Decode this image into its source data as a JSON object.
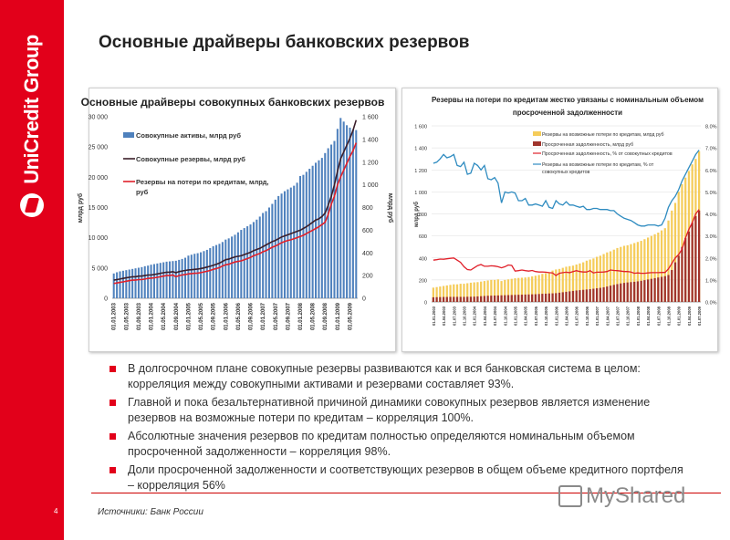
{
  "brand": {
    "logo_text": "UniCredit Group",
    "accent": "#e2001a"
  },
  "slide": {
    "title": "Основные драйверы банковских резервов",
    "page_number": "4",
    "source": "Источники: Банк России",
    "watermark": "MyShared"
  },
  "bullets": [
    "В долгосрочном плане совокупные резервы развиваются как и вся банковская система в целом: корреляция между совокупными активами и резервами составляет 93%.",
    "Главной и пока безальтернативной причиной динамики совокупных резервов является изменение резервов на возможные потери по кредитам – корреляция 100%.",
    "Абсолютные значения резервов по кредитам полностью определяются номинальным объемом просроченной задолженности – корреляция 98%.",
    "Доли просроченной задолженности и соответствующих резервов в общем объеме кредитного портфеля – корреляция 56%"
  ],
  "chart_data": [
    {
      "type": "bar+line",
      "title": "Основные драйверы совокупных банковских резервов",
      "ylabel": "млрд руб",
      "y2label": "млрд руб",
      "ylim": [
        0,
        30000
      ],
      "y2lim": [
        0,
        1600
      ],
      "yticks": [
        "0",
        "5 000",
        "10 000",
        "15 000",
        "20 000",
        "25 000",
        "30 000"
      ],
      "y2ticks": [
        "0",
        "200",
        "400",
        "600",
        "800",
        "1 000",
        "1 200",
        "1 400",
        "1 600"
      ],
      "x_tick_labels": [
        "01.01.2003",
        "01.05.2003",
        "01.09.2003",
        "01.01.2004",
        "01.05.2004",
        "01.09.2004",
        "01.01.2005",
        "01.05.2005",
        "01.09.2005",
        "01.01.2006",
        "01.05.2006",
        "01.09.2006",
        "01.01.2007",
        "01.05.2007",
        "01.09.2007",
        "01.01.2008",
        "01.05.2008",
        "01.09.2008",
        "01.01.2009",
        "01.05.2009"
      ],
      "x_tick_every_months": 4,
      "series": [
        {
          "name": "Совокупные активы, млрд руб",
          "kind": "bar",
          "axis": "left",
          "color": "#4f81bd",
          "values": [
            4100,
            4300,
            4450,
            4550,
            4650,
            4750,
            4850,
            4950,
            5050,
            5150,
            5300,
            5400,
            5550,
            5650,
            5750,
            5850,
            5950,
            6050,
            6100,
            6150,
            6200,
            6350,
            6500,
            6700,
            7050,
            7200,
            7350,
            7450,
            7600,
            7800,
            8000,
            8300,
            8600,
            8800,
            9000,
            9300,
            9700,
            9900,
            10200,
            10500,
            10900,
            11300,
            11600,
            11900,
            12200,
            12600,
            13000,
            13500,
            14100,
            14400,
            15000,
            15600,
            16300,
            16900,
            17300,
            17700,
            18000,
            18300,
            18600,
            19100,
            20200,
            20400,
            20900,
            21400,
            21900,
            22400,
            22800,
            23200,
            24000,
            24800,
            25400,
            26000,
            28000,
            29800,
            29200,
            28600,
            28200,
            27900,
            27800
          ]
        },
        {
          "name": "Совокупные резервы, млрд руб",
          "kind": "line",
          "axis": "right",
          "color": "#3b1e2a",
          "values": [
            160,
            165,
            170,
            175,
            180,
            185,
            190,
            190,
            195,
            195,
            200,
            205,
            205,
            210,
            215,
            220,
            225,
            230,
            230,
            235,
            225,
            235,
            240,
            245,
            250,
            252,
            255,
            258,
            262,
            268,
            275,
            282,
            290,
            300,
            310,
            325,
            340,
            345,
            355,
            365,
            370,
            375,
            385,
            395,
            405,
            420,
            430,
            440,
            455,
            470,
            485,
            500,
            510,
            525,
            540,
            550,
            560,
            570,
            580,
            590,
            600,
            615,
            630,
            650,
            670,
            690,
            700,
            720,
            750,
            820,
            900,
            1000,
            1120,
            1230,
            1290,
            1350,
            1410,
            1480,
            1570
          ]
        },
        {
          "name": "Резервы на потери по кредитам, млрд, руб",
          "kind": "line",
          "axis": "right",
          "color": "#e0202a",
          "values": [
            130,
            135,
            140,
            145,
            150,
            155,
            160,
            160,
            165,
            165,
            170,
            175,
            178,
            180,
            185,
            190,
            195,
            200,
            200,
            205,
            190,
            200,
            205,
            210,
            215,
            218,
            220,
            222,
            226,
            232,
            238,
            245,
            255,
            262,
            270,
            285,
            295,
            300,
            310,
            320,
            325,
            330,
            340,
            350,
            360,
            375,
            385,
            395,
            410,
            420,
            435,
            450,
            460,
            475,
            490,
            500,
            510,
            515,
            525,
            535,
            545,
            555,
            570,
            585,
            600,
            615,
            630,
            650,
            670,
            740,
            830,
            900,
            1000,
            1070,
            1130,
            1190,
            1250,
            1300,
            1370
          ]
        }
      ]
    },
    {
      "type": "bar+line",
      "title": [
        "Резервы на потери по кредитам жестко увязаны с номинальным объемом",
        "просроченной задолженности"
      ],
      "ylabel": "млрд руб",
      "ylim": [
        0,
        1600
      ],
      "y2lim": [
        0,
        8
      ],
      "yticks": [
        "0",
        "200",
        "400",
        "600",
        "800",
        "1 000",
        "1 200",
        "1 400",
        "1 600"
      ],
      "y2ticks": [
        "0.0%",
        "1.0%",
        "2.0%",
        "3.0%",
        "4.0%",
        "5.0%",
        "6.0%",
        "7.0%",
        "8.0%"
      ],
      "x_tick_labels": [
        "01.01.2003",
        "01.04.2003",
        "01.07.2003",
        "01.10.2003",
        "01.01.2004",
        "01.04.2004",
        "01.07.2004",
        "01.10.2004",
        "01.01.2005",
        "01.04.2005",
        "01.07.2005",
        "01.10.2005",
        "01.01.2006",
        "01.04.2006",
        "01.07.2006",
        "01.10.2006",
        "01.01.2007",
        "01.04.2007",
        "01.07.2007",
        "01.10.2007",
        "01.01.2008",
        "01.04.2008",
        "01.07.2008",
        "01.10.2008",
        "01.01.2009",
        "01.04.2009",
        "01.07.2009"
      ],
      "x_tick_every_months": 3,
      "series": [
        {
          "name": "Резервы на возможные потери по кредитам, млрд руб",
          "kind": "bar",
          "axis": "left",
          "color": "#f5cc5a",
          "values": [
            130,
            135,
            140,
            145,
            150,
            155,
            160,
            160,
            165,
            165,
            170,
            175,
            178,
            180,
            185,
            190,
            195,
            200,
            200,
            205,
            190,
            200,
            205,
            210,
            215,
            218,
            220,
            222,
            226,
            232,
            238,
            245,
            255,
            262,
            270,
            285,
            295,
            300,
            310,
            320,
            325,
            330,
            340,
            350,
            360,
            375,
            385,
            395,
            410,
            420,
            435,
            450,
            460,
            475,
            490,
            500,
            510,
            515,
            525,
            535,
            545,
            555,
            570,
            585,
            600,
            615,
            630,
            650,
            670,
            740,
            830,
            900,
            1000,
            1070,
            1130,
            1190,
            1250,
            1300,
            1370
          ]
        },
        {
          "name": "Просроченная задолженность, млрд руб",
          "kind": "bar",
          "axis": "left",
          "color": "#a0342c",
          "values": [
            42,
            43,
            44,
            45,
            45,
            46,
            46,
            46,
            46,
            46,
            47,
            47,
            48,
            50,
            52,
            54,
            56,
            57,
            58,
            59,
            60,
            61,
            62,
            63,
            64,
            65,
            66,
            67,
            68,
            69,
            70,
            72,
            74,
            75,
            77,
            78,
            80,
            84,
            88,
            92,
            96,
            100,
            104,
            107,
            110,
            113,
            116,
            120,
            124,
            128,
            133,
            140,
            148,
            155,
            162,
            168,
            173,
            177,
            180,
            183,
            187,
            192,
            198,
            204,
            210,
            216,
            222,
            228,
            234,
            245,
            290,
            360,
            420,
            500,
            580,
            640,
            720,
            780,
            830
          ]
        },
        {
          "name": "Просроченная задолженность, % от совокупных кредитов",
          "kind": "line",
          "axis": "right",
          "color": "#e0202a",
          "values": [
            1.9,
            1.92,
            1.95,
            1.94,
            1.96,
            1.98,
            2.0,
            1.9,
            1.8,
            1.6,
            1.47,
            1.45,
            1.55,
            1.65,
            1.7,
            1.62,
            1.62,
            1.64,
            1.63,
            1.6,
            1.55,
            1.6,
            1.68,
            1.66,
            1.4,
            1.42,
            1.45,
            1.42,
            1.4,
            1.43,
            1.38,
            1.36,
            1.36,
            1.35,
            1.33,
            1.32,
            1.2,
            1.3,
            1.33,
            1.35,
            1.33,
            1.38,
            1.42,
            1.38,
            1.36,
            1.36,
            1.42,
            1.32,
            1.35,
            1.35,
            1.36,
            1.38,
            1.45,
            1.43,
            1.42,
            1.4,
            1.38,
            1.38,
            1.36,
            1.3,
            1.32,
            1.3,
            1.3,
            1.32,
            1.33,
            1.33,
            1.33,
            1.34,
            1.34,
            1.5,
            1.75,
            2.0,
            2.15,
            2.4,
            2.9,
            3.3,
            3.6,
            4.0,
            4.2
          ]
        },
        {
          "name": "Резервы на возможные потери по кредитам, % от совокупных кредитов",
          "name_lines": [
            "Резервы на возможные потери по кредитам, % от",
            "совокупных кредитов"
          ],
          "kind": "line",
          "axis": "right",
          "color": "#2e8bc0",
          "values": [
            6.3,
            6.35,
            6.5,
            6.7,
            6.55,
            6.6,
            6.7,
            6.2,
            6.15,
            6.35,
            5.8,
            5.85,
            6.3,
            6.2,
            6.0,
            6.2,
            5.6,
            5.55,
            5.65,
            5.4,
            4.5,
            5.0,
            4.95,
            5.0,
            4.95,
            4.6,
            4.6,
            4.7,
            4.4,
            4.4,
            4.45,
            4.4,
            4.35,
            4.6,
            4.3,
            4.25,
            4.6,
            4.45,
            4.4,
            4.55,
            4.4,
            4.4,
            4.35,
            4.3,
            4.35,
            4.2,
            4.2,
            4.25,
            4.25,
            4.2,
            4.2,
            4.2,
            4.15,
            4.15,
            4.0,
            3.9,
            3.8,
            3.75,
            3.7,
            3.6,
            3.5,
            3.45,
            3.45,
            3.5,
            3.5,
            3.5,
            3.45,
            3.5,
            3.8,
            4.3,
            4.6,
            4.8,
            5.1,
            5.5,
            5.8,
            6.1,
            6.4,
            6.7,
            6.9
          ]
        }
      ]
    }
  ]
}
